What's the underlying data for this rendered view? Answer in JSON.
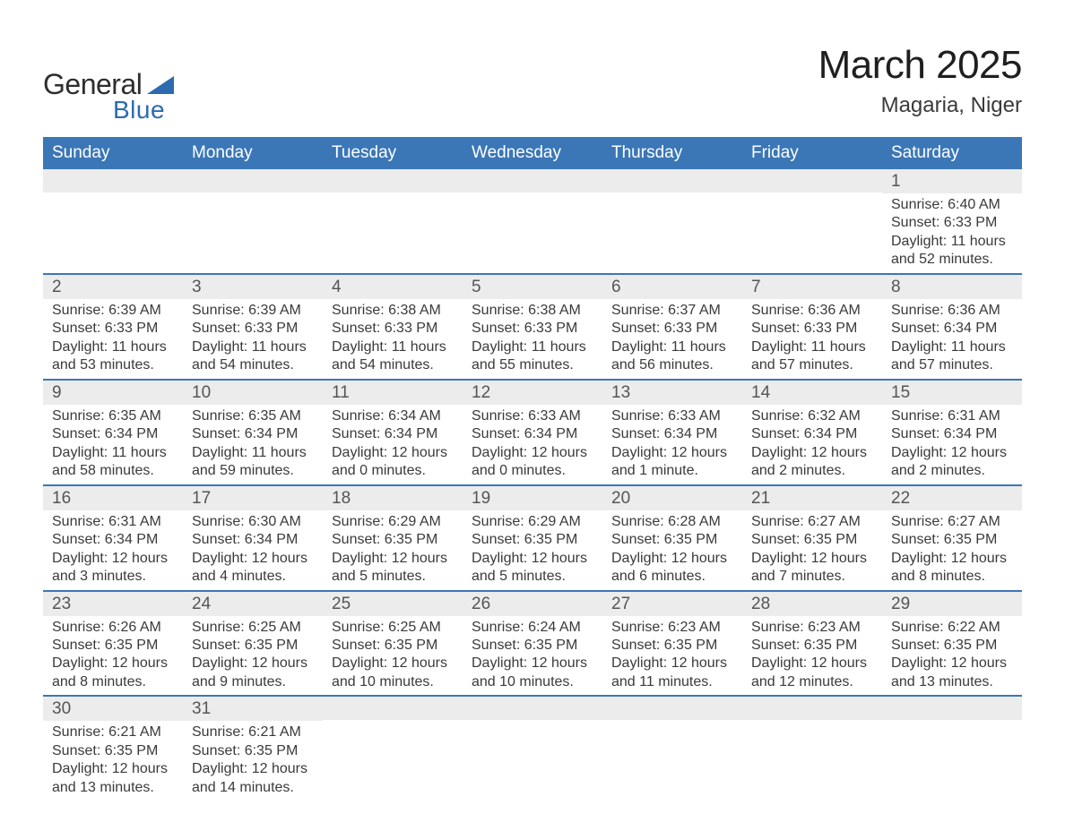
{
  "brand": {
    "word1": "General",
    "word2": "Blue",
    "color": "#2d6ab0"
  },
  "title": {
    "month": "March 2025",
    "location": "Magaria, Niger"
  },
  "colors": {
    "header_bg": "#3b77b7",
    "header_text": "#ffffff",
    "band_bg": "#ececec",
    "row_divider": "#3b77b7",
    "body_text": "#3a3a3a"
  },
  "layout": {
    "columns": 7,
    "header_fontsize": 19,
    "daynum_fontsize": 19,
    "body_fontsize": 16
  },
  "weekdays": [
    "Sunday",
    "Monday",
    "Tuesday",
    "Wednesday",
    "Thursday",
    "Friday",
    "Saturday"
  ],
  "weeks": [
    [
      {
        "day": ""
      },
      {
        "day": ""
      },
      {
        "day": ""
      },
      {
        "day": ""
      },
      {
        "day": ""
      },
      {
        "day": ""
      },
      {
        "day": "1",
        "sunrise": "Sunrise: 6:40 AM",
        "sunset": "Sunset: 6:33 PM",
        "daylight1": "Daylight: 11 hours",
        "daylight2": "and 52 minutes."
      }
    ],
    [
      {
        "day": "2",
        "sunrise": "Sunrise: 6:39 AM",
        "sunset": "Sunset: 6:33 PM",
        "daylight1": "Daylight: 11 hours",
        "daylight2": "and 53 minutes."
      },
      {
        "day": "3",
        "sunrise": "Sunrise: 6:39 AM",
        "sunset": "Sunset: 6:33 PM",
        "daylight1": "Daylight: 11 hours",
        "daylight2": "and 54 minutes."
      },
      {
        "day": "4",
        "sunrise": "Sunrise: 6:38 AM",
        "sunset": "Sunset: 6:33 PM",
        "daylight1": "Daylight: 11 hours",
        "daylight2": "and 54 minutes."
      },
      {
        "day": "5",
        "sunrise": "Sunrise: 6:38 AM",
        "sunset": "Sunset: 6:33 PM",
        "daylight1": "Daylight: 11 hours",
        "daylight2": "and 55 minutes."
      },
      {
        "day": "6",
        "sunrise": "Sunrise: 6:37 AM",
        "sunset": "Sunset: 6:33 PM",
        "daylight1": "Daylight: 11 hours",
        "daylight2": "and 56 minutes."
      },
      {
        "day": "7",
        "sunrise": "Sunrise: 6:36 AM",
        "sunset": "Sunset: 6:33 PM",
        "daylight1": "Daylight: 11 hours",
        "daylight2": "and 57 minutes."
      },
      {
        "day": "8",
        "sunrise": "Sunrise: 6:36 AM",
        "sunset": "Sunset: 6:34 PM",
        "daylight1": "Daylight: 11 hours",
        "daylight2": "and 57 minutes."
      }
    ],
    [
      {
        "day": "9",
        "sunrise": "Sunrise: 6:35 AM",
        "sunset": "Sunset: 6:34 PM",
        "daylight1": "Daylight: 11 hours",
        "daylight2": "and 58 minutes."
      },
      {
        "day": "10",
        "sunrise": "Sunrise: 6:35 AM",
        "sunset": "Sunset: 6:34 PM",
        "daylight1": "Daylight: 11 hours",
        "daylight2": "and 59 minutes."
      },
      {
        "day": "11",
        "sunrise": "Sunrise: 6:34 AM",
        "sunset": "Sunset: 6:34 PM",
        "daylight1": "Daylight: 12 hours",
        "daylight2": "and 0 minutes."
      },
      {
        "day": "12",
        "sunrise": "Sunrise: 6:33 AM",
        "sunset": "Sunset: 6:34 PM",
        "daylight1": "Daylight: 12 hours",
        "daylight2": "and 0 minutes."
      },
      {
        "day": "13",
        "sunrise": "Sunrise: 6:33 AM",
        "sunset": "Sunset: 6:34 PM",
        "daylight1": "Daylight: 12 hours",
        "daylight2": "and 1 minute."
      },
      {
        "day": "14",
        "sunrise": "Sunrise: 6:32 AM",
        "sunset": "Sunset: 6:34 PM",
        "daylight1": "Daylight: 12 hours",
        "daylight2": "and 2 minutes."
      },
      {
        "day": "15",
        "sunrise": "Sunrise: 6:31 AM",
        "sunset": "Sunset: 6:34 PM",
        "daylight1": "Daylight: 12 hours",
        "daylight2": "and 2 minutes."
      }
    ],
    [
      {
        "day": "16",
        "sunrise": "Sunrise: 6:31 AM",
        "sunset": "Sunset: 6:34 PM",
        "daylight1": "Daylight: 12 hours",
        "daylight2": "and 3 minutes."
      },
      {
        "day": "17",
        "sunrise": "Sunrise: 6:30 AM",
        "sunset": "Sunset: 6:34 PM",
        "daylight1": "Daylight: 12 hours",
        "daylight2": "and 4 minutes."
      },
      {
        "day": "18",
        "sunrise": "Sunrise: 6:29 AM",
        "sunset": "Sunset: 6:35 PM",
        "daylight1": "Daylight: 12 hours",
        "daylight2": "and 5 minutes."
      },
      {
        "day": "19",
        "sunrise": "Sunrise: 6:29 AM",
        "sunset": "Sunset: 6:35 PM",
        "daylight1": "Daylight: 12 hours",
        "daylight2": "and 5 minutes."
      },
      {
        "day": "20",
        "sunrise": "Sunrise: 6:28 AM",
        "sunset": "Sunset: 6:35 PM",
        "daylight1": "Daylight: 12 hours",
        "daylight2": "and 6 minutes."
      },
      {
        "day": "21",
        "sunrise": "Sunrise: 6:27 AM",
        "sunset": "Sunset: 6:35 PM",
        "daylight1": "Daylight: 12 hours",
        "daylight2": "and 7 minutes."
      },
      {
        "day": "22",
        "sunrise": "Sunrise: 6:27 AM",
        "sunset": "Sunset: 6:35 PM",
        "daylight1": "Daylight: 12 hours",
        "daylight2": "and 8 minutes."
      }
    ],
    [
      {
        "day": "23",
        "sunrise": "Sunrise: 6:26 AM",
        "sunset": "Sunset: 6:35 PM",
        "daylight1": "Daylight: 12 hours",
        "daylight2": "and 8 minutes."
      },
      {
        "day": "24",
        "sunrise": "Sunrise: 6:25 AM",
        "sunset": "Sunset: 6:35 PM",
        "daylight1": "Daylight: 12 hours",
        "daylight2": "and 9 minutes."
      },
      {
        "day": "25",
        "sunrise": "Sunrise: 6:25 AM",
        "sunset": "Sunset: 6:35 PM",
        "daylight1": "Daylight: 12 hours",
        "daylight2": "and 10 minutes."
      },
      {
        "day": "26",
        "sunrise": "Sunrise: 6:24 AM",
        "sunset": "Sunset: 6:35 PM",
        "daylight1": "Daylight: 12 hours",
        "daylight2": "and 10 minutes."
      },
      {
        "day": "27",
        "sunrise": "Sunrise: 6:23 AM",
        "sunset": "Sunset: 6:35 PM",
        "daylight1": "Daylight: 12 hours",
        "daylight2": "and 11 minutes."
      },
      {
        "day": "28",
        "sunrise": "Sunrise: 6:23 AM",
        "sunset": "Sunset: 6:35 PM",
        "daylight1": "Daylight: 12 hours",
        "daylight2": "and 12 minutes."
      },
      {
        "day": "29",
        "sunrise": "Sunrise: 6:22 AM",
        "sunset": "Sunset: 6:35 PM",
        "daylight1": "Daylight: 12 hours",
        "daylight2": "and 13 minutes."
      }
    ],
    [
      {
        "day": "30",
        "sunrise": "Sunrise: 6:21 AM",
        "sunset": "Sunset: 6:35 PM",
        "daylight1": "Daylight: 12 hours",
        "daylight2": "and 13 minutes."
      },
      {
        "day": "31",
        "sunrise": "Sunrise: 6:21 AM",
        "sunset": "Sunset: 6:35 PM",
        "daylight1": "Daylight: 12 hours",
        "daylight2": "and 14 minutes."
      },
      {
        "day": ""
      },
      {
        "day": ""
      },
      {
        "day": ""
      },
      {
        "day": ""
      },
      {
        "day": ""
      }
    ]
  ]
}
